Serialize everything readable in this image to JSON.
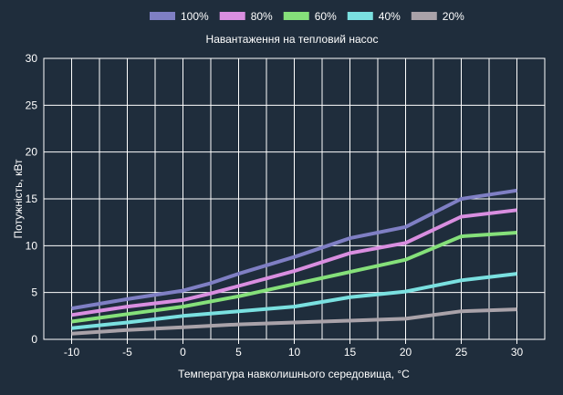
{
  "chart_data": {
    "type": "line",
    "title": "",
    "legend_title": "Навантаження на тепловий насос",
    "legend_position": "top-center",
    "xlabel": "Температура навколишнього середовища, °C",
    "ylabel": "Потужність, кВт",
    "xlim": [
      -12.5,
      32.5
    ],
    "ylim": [
      0,
      30
    ],
    "grid": true,
    "x": [
      -10,
      -5,
      0,
      5,
      10,
      15,
      20,
      25,
      30
    ],
    "x_tick_labels": [
      "-10",
      "-5",
      "0",
      "5",
      "10",
      "15",
      "20",
      "25",
      "30"
    ],
    "y_ticks": [
      0,
      5,
      10,
      15,
      20,
      25,
      30
    ],
    "y_tick_labels": [
      "0",
      "5",
      "10",
      "15",
      "20",
      "25",
      "30"
    ],
    "series": [
      {
        "name": "100%",
        "color": "#7f7fc4",
        "points": [
          [
            -10,
            3.3
          ],
          [
            -5,
            4.3
          ],
          [
            0,
            5.2
          ],
          [
            2.5,
            6.0
          ],
          [
            5,
            7.0
          ],
          [
            10,
            8.8
          ],
          [
            15,
            10.8
          ],
          [
            20,
            12.0
          ],
          [
            25,
            15.0
          ],
          [
            30,
            15.9
          ]
        ]
      },
      {
        "name": "80%",
        "color": "#d98ee0",
        "points": [
          [
            -10,
            2.6
          ],
          [
            -5,
            3.5
          ],
          [
            0,
            4.2
          ],
          [
            2.5,
            4.9
          ],
          [
            5,
            5.7
          ],
          [
            10,
            7.3
          ],
          [
            15,
            9.2
          ],
          [
            20,
            10.3
          ],
          [
            25,
            13.1
          ],
          [
            30,
            13.8
          ]
        ]
      },
      {
        "name": "60%",
        "color": "#85e07a",
        "points": [
          [
            -10,
            1.9
          ],
          [
            -5,
            2.7
          ],
          [
            0,
            3.5
          ],
          [
            5,
            4.6
          ],
          [
            10,
            5.9
          ],
          [
            15,
            7.2
          ],
          [
            20,
            8.5
          ],
          [
            25,
            11.0
          ],
          [
            30,
            11.4
          ]
        ]
      },
      {
        "name": "40%",
        "color": "#7ae0e0",
        "points": [
          [
            -10,
            1.2
          ],
          [
            -5,
            1.8
          ],
          [
            0,
            2.5
          ],
          [
            5,
            3.0
          ],
          [
            10,
            3.5
          ],
          [
            15,
            4.5
          ],
          [
            20,
            5.1
          ],
          [
            25,
            6.3
          ],
          [
            30,
            7.0
          ]
        ]
      },
      {
        "name": "20%",
        "color": "#a9a2a9",
        "points": [
          [
            -10,
            0.6
          ],
          [
            -5,
            1.0
          ],
          [
            0,
            1.3
          ],
          [
            5,
            1.6
          ],
          [
            10,
            1.8
          ],
          [
            15,
            2.0
          ],
          [
            20,
            2.2
          ],
          [
            25,
            3.0
          ],
          [
            30,
            3.2
          ]
        ]
      }
    ]
  }
}
